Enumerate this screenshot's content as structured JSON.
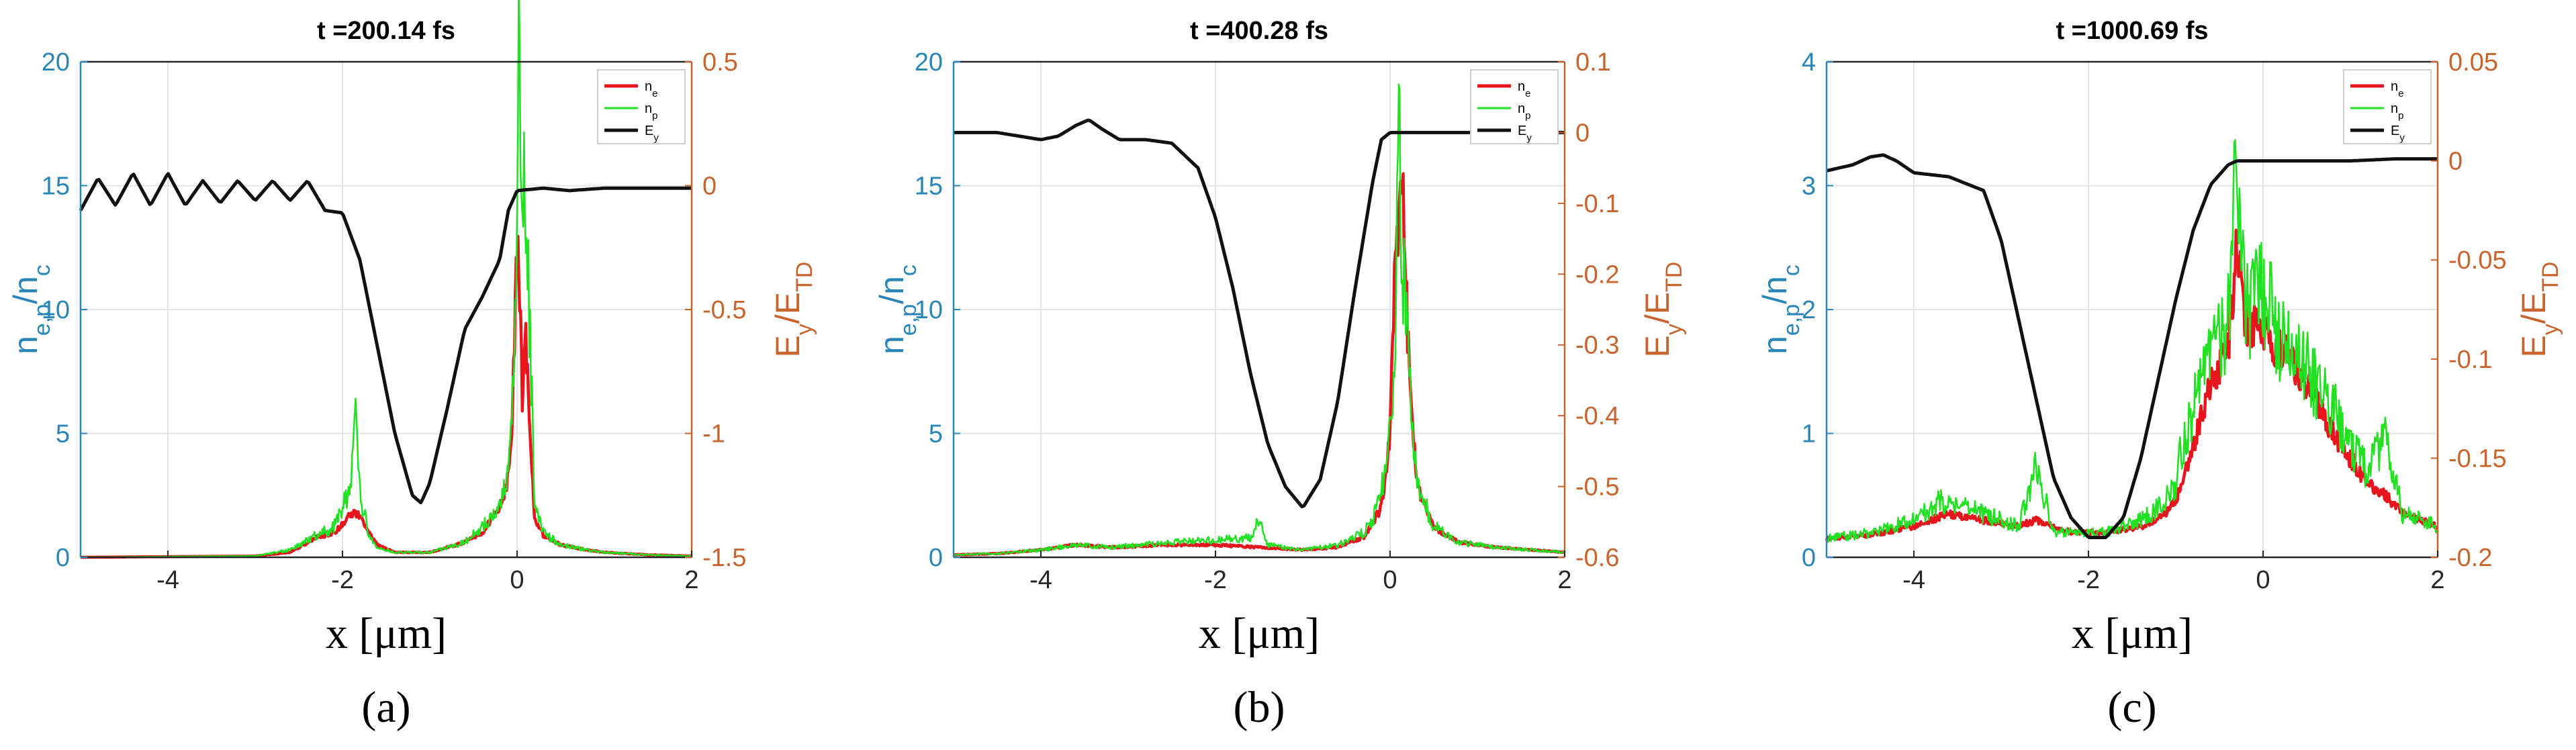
{
  "figure": {
    "xlabel": "x [μm]",
    "colors": {
      "ne": "#e8141e",
      "np": "#22e022",
      "Ey": "#111111",
      "left_axis": "#2a86b8",
      "right_axis": "#c8642d",
      "grid": "#e6e6e6"
    }
  },
  "chart_data": [
    {
      "type": "line",
      "panel": "a",
      "title": "t =200.14 fs",
      "caption": "(a)",
      "xlabel": "x [μm]",
      "ylabel_left": "n_e,p/n_c",
      "ylabel_right": "E_y/E_TD",
      "xlim": [
        -5,
        2
      ],
      "ylim_left": [
        0,
        20
      ],
      "ylim_right": [
        -1.5,
        0.5
      ],
      "xticks": [
        -4,
        -2,
        0,
        2
      ],
      "yticks_left": [
        0,
        5,
        10,
        15,
        20
      ],
      "yticks_right": [
        -1.5,
        -1,
        -0.5,
        0,
        0.5
      ],
      "grid": true,
      "legend": {
        "position": "top-right",
        "entries": [
          "n_e",
          "n_p",
          "E_y"
        ]
      },
      "series": [
        {
          "name": "n_e",
          "axis": "left",
          "color": "#e8141e",
          "x": [
            -5,
            -3,
            -2.6,
            -2.3,
            -2.1,
            -2.0,
            -1.9,
            -1.8,
            -1.7,
            -1.6,
            -1.4,
            -1.0,
            -0.6,
            -0.4,
            -0.2,
            -0.1,
            -0.05,
            0,
            0.03,
            0.06,
            0.1,
            0.15,
            0.2,
            0.3,
            0.5,
            0.8,
            1.0,
            1.5,
            2
          ],
          "y": [
            0,
            0.05,
            0.2,
            0.8,
            1.0,
            1.3,
            1.8,
            1.7,
            1.0,
            0.5,
            0.2,
            0.2,
            0.6,
            1.0,
            2.0,
            3.2,
            6.0,
            12.5,
            10.5,
            6.5,
            9.0,
            5.0,
            1.6,
            0.9,
            0.5,
            0.3,
            0.2,
            0.1,
            0.05
          ]
        },
        {
          "name": "n_p",
          "axis": "left",
          "color": "#22e022",
          "x": [
            -5,
            -3,
            -2.6,
            -2.3,
            -2.1,
            -2.0,
            -1.9,
            -1.85,
            -1.8,
            -1.7,
            -1.6,
            -1.4,
            -1.0,
            -0.6,
            -0.4,
            -0.2,
            -0.1,
            -0.05,
            0,
            0.02,
            0.05,
            0.1,
            0.15,
            0.2,
            0.3,
            0.5,
            0.8,
            1.0,
            1.5,
            2
          ],
          "y": [
            0,
            0.05,
            0.3,
            0.9,
            1.2,
            2.0,
            3.0,
            5.4,
            2.5,
            1.0,
            0.4,
            0.2,
            0.2,
            0.6,
            1.2,
            2.0,
            3.5,
            7.0,
            12.0,
            19.8,
            13.5,
            14.8,
            9.0,
            2.2,
            1.0,
            0.5,
            0.3,
            0.2,
            0.1,
            0.05
          ]
        },
        {
          "name": "E_y",
          "axis": "right",
          "color": "#111111",
          "x": [
            -5,
            -4.8,
            -4.6,
            -4.4,
            -4.2,
            -4.0,
            -3.8,
            -3.6,
            -3.4,
            -3.2,
            -3.0,
            -2.8,
            -2.6,
            -2.4,
            -2.2,
            -2.0,
            -1.8,
            -1.6,
            -1.4,
            -1.2,
            -1.1,
            -1.0,
            -0.8,
            -0.6,
            -0.4,
            -0.2,
            -0.1,
            0,
            0.3,
            0.6,
            1.0,
            1.5,
            2
          ],
          "y": [
            -0.1,
            0.03,
            -0.08,
            0.05,
            -0.08,
            0.05,
            -0.08,
            0.02,
            -0.07,
            0.02,
            -0.06,
            0.02,
            -0.06,
            0.02,
            -0.1,
            -0.11,
            -0.3,
            -0.65,
            -1.0,
            -1.25,
            -1.28,
            -1.2,
            -0.9,
            -0.58,
            -0.45,
            -0.3,
            -0.1,
            -0.02,
            -0.01,
            -0.02,
            -0.01,
            -0.01,
            -0.01
          ]
        }
      ]
    },
    {
      "type": "line",
      "panel": "b",
      "title": "t =400.28 fs",
      "caption": "(b)",
      "xlabel": "x [μm]",
      "ylabel_left": "n_e,p/n_c",
      "ylabel_right": "E_y/E_TD",
      "xlim": [
        -5,
        2
      ],
      "ylim_left": [
        0,
        20
      ],
      "ylim_right": [
        -0.6,
        0.1
      ],
      "xticks": [
        -4,
        -2,
        0,
        2
      ],
      "yticks_left": [
        0,
        5,
        10,
        15,
        20
      ],
      "yticks_right": [
        -0.6,
        -0.5,
        -0.4,
        -0.3,
        -0.2,
        -0.1,
        0,
        0.1
      ],
      "grid": true,
      "legend": {
        "position": "top-right",
        "entries": [
          "n_e",
          "n_p",
          "E_y"
        ]
      },
      "series": [
        {
          "name": "n_e",
          "axis": "left",
          "color": "#e8141e",
          "x": [
            -5,
            -4.5,
            -4,
            -3.6,
            -3.2,
            -2.5,
            -2.0,
            -1.5,
            -1.0,
            -0.6,
            -0.3,
            -0.1,
            0,
            0.05,
            0.1,
            0.15,
            0.2,
            0.3,
            0.5,
            0.8,
            1.2,
            1.6,
            2
          ],
          "y": [
            0.1,
            0.15,
            0.3,
            0.5,
            0.4,
            0.5,
            0.5,
            0.4,
            0.3,
            0.4,
            0.8,
            2.0,
            5.0,
            11.0,
            14.0,
            15.0,
            9.0,
            3.0,
            1.2,
            0.6,
            0.4,
            0.3,
            0.2
          ]
        },
        {
          "name": "n_p",
          "axis": "left",
          "color": "#22e022",
          "x": [
            -5,
            -4.5,
            -4,
            -3.6,
            -3.2,
            -2.5,
            -2.0,
            -1.6,
            -1.5,
            -1.4,
            -1.0,
            -0.6,
            -0.3,
            -0.2,
            -0.1,
            0,
            0.05,
            0.1,
            0.15,
            0.2,
            0.3,
            0.5,
            0.8,
            1.2,
            1.6,
            2
          ],
          "y": [
            0.1,
            0.15,
            0.3,
            0.5,
            0.4,
            0.6,
            0.7,
            0.8,
            1.5,
            0.5,
            0.3,
            0.5,
            1.0,
            1.5,
            2.5,
            5.5,
            7.0,
            16.5,
            12.0,
            8.0,
            3.0,
            1.3,
            0.6,
            0.4,
            0.3,
            0.2
          ]
        },
        {
          "name": "E_y",
          "axis": "right",
          "color": "#111111",
          "x": [
            -5,
            -4.5,
            -4.0,
            -3.8,
            -3.6,
            -3.45,
            -3.3,
            -3.1,
            -2.8,
            -2.5,
            -2.2,
            -2.0,
            -1.8,
            -1.6,
            -1.4,
            -1.2,
            -1.0,
            -0.8,
            -0.6,
            -0.4,
            -0.2,
            -0.1,
            0,
            0.3,
            0.6,
            1.0,
            1.5,
            2
          ],
          "y": [
            0.0,
            0.0,
            -0.01,
            -0.005,
            0.01,
            0.018,
            0.005,
            -0.01,
            -0.01,
            -0.015,
            -0.05,
            -0.12,
            -0.22,
            -0.34,
            -0.44,
            -0.5,
            -0.53,
            -0.49,
            -0.38,
            -0.22,
            -0.07,
            -0.01,
            0.0,
            0.0,
            0.0,
            0.0,
            0.0,
            0.0
          ]
        }
      ]
    },
    {
      "type": "line",
      "panel": "c",
      "title": "t =1000.69 fs",
      "caption": "(c)",
      "xlabel": "x [μm]",
      "ylabel_left": "n_e,p/n_c",
      "ylabel_right": "E_y/E_TD",
      "xlim": [
        -5,
        2
      ],
      "ylim_left": [
        0,
        4
      ],
      "ylim_right": [
        -0.2,
        0.05
      ],
      "xticks": [
        -4,
        -2,
        0,
        2
      ],
      "yticks_left": [
        0,
        1,
        2,
        3,
        4
      ],
      "yticks_right": [
        -0.2,
        -0.15,
        -0.1,
        -0.05,
        0,
        0.05
      ],
      "grid": true,
      "legend": {
        "position": "top-right",
        "entries": [
          "n_e",
          "n_p",
          "E_y"
        ]
      },
      "series": [
        {
          "name": "n_e",
          "axis": "left",
          "color": "#e8141e",
          "x": [
            -5,
            -4.5,
            -4.0,
            -3.6,
            -3.2,
            -2.8,
            -2.6,
            -2.2,
            -1.8,
            -1.4,
            -1.2,
            -1.0,
            -0.8,
            -0.6,
            -0.4,
            -0.3,
            -0.2,
            0,
            0.3,
            0.6,
            0.8,
            1.0,
            1.2,
            1.4,
            1.6,
            2
          ],
          "y": [
            0.15,
            0.18,
            0.25,
            0.35,
            0.3,
            0.25,
            0.3,
            0.2,
            0.2,
            0.25,
            0.3,
            0.45,
            0.9,
            1.4,
            1.7,
            2.5,
            1.9,
            1.8,
            1.6,
            1.3,
            1.0,
            0.8,
            0.6,
            0.5,
            0.35,
            0.25
          ]
        },
        {
          "name": "n_p",
          "axis": "left",
          "color": "#22e022",
          "x": [
            -5,
            -4.5,
            -4.0,
            -3.7,
            -3.4,
            -3.0,
            -2.8,
            -2.6,
            -2.4,
            -2.2,
            -1.8,
            -1.4,
            -1.2,
            -1.0,
            -0.9,
            -0.8,
            -0.6,
            -0.4,
            -0.3,
            -0.25,
            -0.2,
            0,
            0.2,
            0.4,
            0.6,
            0.8,
            1.0,
            1.2,
            1.4,
            1.6,
            2
          ],
          "y": [
            0.15,
            0.2,
            0.3,
            0.45,
            0.4,
            0.3,
            0.25,
            0.75,
            0.2,
            0.2,
            0.2,
            0.3,
            0.4,
            0.6,
            1.0,
            1.2,
            1.6,
            1.9,
            3.5,
            2.6,
            2.0,
            2.1,
            1.8,
            1.6,
            1.4,
            1.2,
            0.9,
            0.7,
            1.0,
            0.35,
            0.25
          ]
        },
        {
          "name": "E_y",
          "axis": "right",
          "color": "#111111",
          "x": [
            -5,
            -4.7,
            -4.5,
            -4.35,
            -4.2,
            -4.0,
            -3.6,
            -3.2,
            -3.0,
            -2.8,
            -2.6,
            -2.4,
            -2.2,
            -2.0,
            -1.8,
            -1.6,
            -1.4,
            -1.2,
            -1.0,
            -0.8,
            -0.6,
            -0.4,
            -0.3,
            0,
            0.5,
            1.0,
            1.5,
            2
          ],
          "y": [
            -0.005,
            -0.002,
            0.002,
            0.003,
            0.0,
            -0.006,
            -0.008,
            -0.015,
            -0.04,
            -0.08,
            -0.12,
            -0.16,
            -0.18,
            -0.19,
            -0.19,
            -0.18,
            -0.15,
            -0.11,
            -0.07,
            -0.035,
            -0.012,
            -0.002,
            0.0,
            0.0,
            0.0,
            0.0,
            0.001,
            0.001
          ]
        }
      ]
    }
  ]
}
